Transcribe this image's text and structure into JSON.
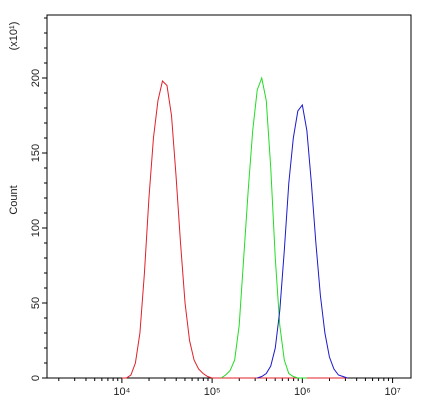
{
  "chart_data": {
    "type": "line",
    "x_log_scale": true,
    "y_label": "Count",
    "y_multiplier": "(x10¹)",
    "x": [
      10000,
      11220,
      12589,
      14125,
      15849,
      17783,
      19953,
      22387,
      25119,
      28184,
      31623,
      35481,
      39811,
      44668,
      50119,
      56234,
      63096,
      70795,
      79433,
      89125,
      100000,
      112202,
      125893,
      141254,
      158489,
      177828,
      199526,
      223872,
      251189,
      281838,
      316228,
      354813,
      398107,
      446684,
      501187,
      562341,
      630957,
      707946,
      794328,
      891251,
      1000000,
      1122018,
      1258925,
      1412538,
      1584893,
      1778279,
      1995262,
      2238721,
      2511886,
      2818383,
      3162278
    ],
    "series": [
      {
        "color": "#e0202a",
        "values": [
          0,
          0,
          2,
          10,
          30,
          70,
          120,
          160,
          185,
          198,
          195,
          175,
          135,
          90,
          50,
          25,
          12,
          6,
          3,
          1,
          0,
          0,
          0,
          0,
          0,
          0,
          0,
          0,
          0,
          0,
          0,
          0,
          0,
          0,
          0,
          0,
          0,
          0,
          0,
          0,
          0,
          0,
          0,
          0,
          0,
          0,
          0,
          0,
          0,
          0,
          0
        ]
      },
      {
        "color": "#22dd22",
        "values": [
          null,
          null,
          null,
          null,
          null,
          null,
          null,
          null,
          null,
          null,
          null,
          null,
          null,
          null,
          null,
          null,
          null,
          null,
          null,
          null,
          null,
          null,
          0,
          2,
          5,
          12,
          35,
          80,
          125,
          165,
          192,
          200,
          185,
          140,
          80,
          35,
          12,
          3,
          1,
          0,
          0,
          0,
          null,
          null,
          null,
          null,
          null,
          null,
          null,
          null,
          null
        ]
      },
      {
        "color": "#1a1acc",
        "values": [
          null,
          null,
          null,
          null,
          null,
          null,
          null,
          null,
          null,
          null,
          null,
          null,
          null,
          null,
          null,
          null,
          null,
          null,
          null,
          null,
          null,
          null,
          null,
          null,
          null,
          null,
          null,
          null,
          null,
          null,
          0,
          1,
          3,
          8,
          20,
          45,
          85,
          130,
          160,
          178,
          182,
          165,
          130,
          90,
          55,
          30,
          14,
          6,
          2,
          1,
          0
        ]
      }
    ],
    "xlim": [
      1480,
      16000000
    ],
    "xticks": [
      {
        "value": 10000,
        "label": "10⁴"
      },
      {
        "value": 100000,
        "label": "10⁵"
      },
      {
        "value": 1000000,
        "label": "10⁶"
      },
      {
        "value": 10000000,
        "label": "10⁷"
      }
    ],
    "ylim": [
      0,
      242
    ],
    "yticks": [
      0,
      50,
      100,
      150,
      200
    ]
  }
}
